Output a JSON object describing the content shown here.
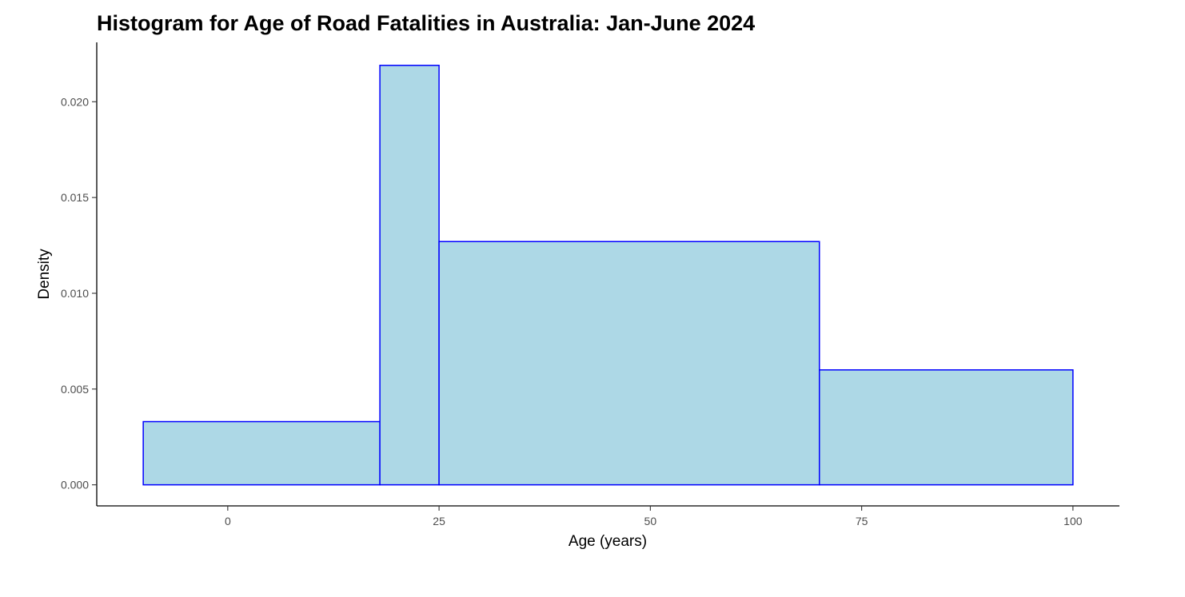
{
  "chart_data": {
    "type": "bar",
    "title": "Histogram for Age of Road Fatalities in Australia: Jan-June 2024",
    "xlabel": "Age (years)",
    "ylabel": "Density",
    "xlim": [
      -15.5,
      105.5
    ],
    "ylim": [
      -0.0011,
      0.0231
    ],
    "x_ticks": [
      0,
      25,
      50,
      75,
      100
    ],
    "x_tick_labels": [
      "0",
      "25",
      "50",
      "75",
      "100"
    ],
    "y_ticks": [
      0,
      0.005,
      0.01,
      0.015,
      0.02
    ],
    "y_tick_labels": [
      "0.000",
      "0.005",
      "0.010",
      "0.015",
      "0.020"
    ],
    "bins": [
      {
        "start": -10,
        "end": 18,
        "density": 0.0033
      },
      {
        "start": 18,
        "end": 25,
        "density": 0.0219
      },
      {
        "start": 25,
        "end": 70,
        "density": 0.0127
      },
      {
        "start": 70,
        "end": 100,
        "density": 0.006
      }
    ],
    "fill_color": "#add8e6",
    "border_color": "#0000ff",
    "grid": false,
    "legend": "none"
  }
}
